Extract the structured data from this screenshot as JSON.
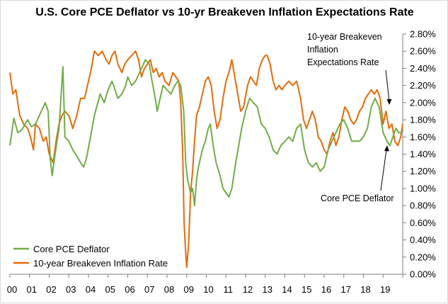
{
  "chart_data": {
    "type": "line",
    "title": "U.S. Core PCE Deflator vs 10-yr Breakeven Inflation Expectations Rate",
    "xlabel": "",
    "ylabel": "",
    "x_tick_labels": [
      "00",
      "01",
      "02",
      "03",
      "04",
      "05",
      "06",
      "07",
      "08",
      "09",
      "10",
      "11",
      "12",
      "13",
      "14",
      "15",
      "16",
      "17",
      "18",
      "19"
    ],
    "x_range": [
      2000.0,
      2020.0
    ],
    "ylim": [
      0.0,
      2.8
    ],
    "y_tick_values": [
      0.0,
      0.2,
      0.4,
      0.6,
      0.8,
      1.0,
      1.2,
      1.4,
      1.6,
      1.8,
      2.0,
      2.2,
      2.4,
      2.6,
      2.8
    ],
    "y_tick_labels": [
      "0.00%",
      "0.20%",
      "0.40%",
      "0.60%",
      "0.80%",
      "1.00%",
      "1.20%",
      "1.40%",
      "1.60%",
      "1.80%",
      "2.00%",
      "2.20%",
      "2.40%",
      "2.60%",
      "2.80%"
    ],
    "legend": {
      "position": "bottom-left"
    },
    "annotations": [
      {
        "lines": [
          "10-year Breakeven",
          "Inflation",
          "Expectations Rate"
        ],
        "target_series": 1
      },
      {
        "lines": [
          "Core PCE Deflator"
        ],
        "target_series": 0
      }
    ],
    "series": [
      {
        "name": "Core PCE Deflator",
        "color": "#70ad47",
        "points": [
          [
            2000.0,
            1.5
          ],
          [
            2000.2,
            1.82
          ],
          [
            2000.4,
            1.65
          ],
          [
            2000.6,
            1.68
          ],
          [
            2000.9,
            1.8
          ],
          [
            2001.1,
            1.72
          ],
          [
            2001.3,
            1.75
          ],
          [
            2001.6,
            1.9
          ],
          [
            2001.8,
            2.0
          ],
          [
            2001.95,
            1.9
          ],
          [
            2002.05,
            1.35
          ],
          [
            2002.15,
            1.15
          ],
          [
            2002.3,
            1.4
          ],
          [
            2002.5,
            1.7
          ],
          [
            2002.7,
            2.42
          ],
          [
            2002.8,
            1.6
          ],
          [
            2003.0,
            1.55
          ],
          [
            2003.2,
            1.45
          ],
          [
            2003.4,
            1.38
          ],
          [
            2003.6,
            1.3
          ],
          [
            2003.75,
            1.25
          ],
          [
            2003.9,
            1.35
          ],
          [
            2004.1,
            1.6
          ],
          [
            2004.3,
            1.85
          ],
          [
            2004.6,
            2.1
          ],
          [
            2004.8,
            2.0
          ],
          [
            2005.0,
            2.15
          ],
          [
            2005.2,
            2.25
          ],
          [
            2005.35,
            2.15
          ],
          [
            2005.5,
            2.05
          ],
          [
            2005.7,
            2.1
          ],
          [
            2005.9,
            2.2
          ],
          [
            2006.0,
            2.3
          ],
          [
            2006.2,
            2.2
          ],
          [
            2006.4,
            2.25
          ],
          [
            2006.6,
            2.35
          ],
          [
            2006.8,
            2.45
          ],
          [
            2006.9,
            2.5
          ],
          [
            2007.1,
            2.45
          ],
          [
            2007.2,
            2.3
          ],
          [
            2007.4,
            2.05
          ],
          [
            2007.5,
            1.9
          ],
          [
            2007.6,
            2.0
          ],
          [
            2007.8,
            2.2
          ],
          [
            2008.0,
            2.15
          ],
          [
            2008.2,
            2.1
          ],
          [
            2008.4,
            2.2
          ],
          [
            2008.55,
            2.25
          ],
          [
            2008.7,
            2.2
          ],
          [
            2008.85,
            1.9
          ],
          [
            2008.95,
            1.3
          ],
          [
            2009.05,
            1.1
          ],
          [
            2009.2,
            0.95
          ],
          [
            2009.3,
            1.0
          ],
          [
            2009.4,
            0.8
          ],
          [
            2009.5,
            1.1
          ],
          [
            2009.6,
            1.25
          ],
          [
            2009.8,
            1.45
          ],
          [
            2009.95,
            1.55
          ],
          [
            2010.1,
            1.7
          ],
          [
            2010.2,
            1.75
          ],
          [
            2010.35,
            1.5
          ],
          [
            2010.5,
            1.3
          ],
          [
            2010.7,
            1.15
          ],
          [
            2010.85,
            1.0
          ],
          [
            2011.0,
            0.95
          ],
          [
            2011.15,
            0.9
          ],
          [
            2011.3,
            1.0
          ],
          [
            2011.5,
            1.3
          ],
          [
            2011.8,
            1.7
          ],
          [
            2012.0,
            1.9
          ],
          [
            2012.2,
            2.05
          ],
          [
            2012.4,
            2.0
          ],
          [
            2012.6,
            1.95
          ],
          [
            2012.8,
            1.75
          ],
          [
            2013.0,
            1.7
          ],
          [
            2013.2,
            1.6
          ],
          [
            2013.4,
            1.45
          ],
          [
            2013.6,
            1.4
          ],
          [
            2013.8,
            1.5
          ],
          [
            2014.0,
            1.55
          ],
          [
            2014.2,
            1.6
          ],
          [
            2014.4,
            1.55
          ],
          [
            2014.6,
            1.7
          ],
          [
            2014.8,
            1.75
          ],
          [
            2015.0,
            1.45
          ],
          [
            2015.2,
            1.3
          ],
          [
            2015.4,
            1.25
          ],
          [
            2015.6,
            1.3
          ],
          [
            2015.8,
            1.2
          ],
          [
            2016.0,
            1.25
          ],
          [
            2016.2,
            1.45
          ],
          [
            2016.4,
            1.55
          ],
          [
            2016.6,
            1.65
          ],
          [
            2016.8,
            1.75
          ],
          [
            2017.0,
            1.8
          ],
          [
            2017.2,
            1.7
          ],
          [
            2017.4,
            1.55
          ],
          [
            2017.6,
            1.55
          ],
          [
            2017.8,
            1.55
          ],
          [
            2018.0,
            1.6
          ],
          [
            2018.2,
            1.7
          ],
          [
            2018.4,
            1.95
          ],
          [
            2018.6,
            2.05
          ],
          [
            2018.8,
            1.95
          ],
          [
            2019.0,
            1.65
          ],
          [
            2019.2,
            1.55
          ],
          [
            2019.35,
            1.5
          ],
          [
            2019.5,
            1.6
          ],
          [
            2019.65,
            1.7
          ],
          [
            2019.8,
            1.65
          ],
          [
            2019.95,
            1.65
          ]
        ]
      },
      {
        "name": "10-year Breakeven Inflation Rate",
        "color": "#e36c09",
        "points": [
          [
            2000.0,
            2.35
          ],
          [
            2000.15,
            2.1
          ],
          [
            2000.3,
            2.15
          ],
          [
            2000.5,
            1.85
          ],
          [
            2000.7,
            1.75
          ],
          [
            2000.9,
            1.7
          ],
          [
            2001.05,
            1.6
          ],
          [
            2001.2,
            1.45
          ],
          [
            2001.3,
            1.75
          ],
          [
            2001.5,
            1.7
          ],
          [
            2001.7,
            1.55
          ],
          [
            2001.85,
            1.6
          ],
          [
            2002.0,
            1.4
          ],
          [
            2002.2,
            1.3
          ],
          [
            2002.35,
            1.55
          ],
          [
            2002.5,
            1.75
          ],
          [
            2002.65,
            1.85
          ],
          [
            2002.8,
            1.9
          ],
          [
            2003.0,
            1.85
          ],
          [
            2003.2,
            1.7
          ],
          [
            2003.4,
            1.85
          ],
          [
            2003.6,
            2.05
          ],
          [
            2003.8,
            2.05
          ],
          [
            2004.0,
            2.25
          ],
          [
            2004.15,
            2.4
          ],
          [
            2004.3,
            2.6
          ],
          [
            2004.5,
            2.55
          ],
          [
            2004.7,
            2.6
          ],
          [
            2004.9,
            2.5
          ],
          [
            2005.05,
            2.45
          ],
          [
            2005.2,
            2.55
          ],
          [
            2005.35,
            2.6
          ],
          [
            2005.5,
            2.45
          ],
          [
            2005.7,
            2.35
          ],
          [
            2005.85,
            2.45
          ],
          [
            2006.0,
            2.5
          ],
          [
            2006.2,
            2.55
          ],
          [
            2006.4,
            2.6
          ],
          [
            2006.55,
            2.5
          ],
          [
            2006.7,
            2.3
          ],
          [
            2006.85,
            2.4
          ],
          [
            2007.0,
            2.45
          ],
          [
            2007.15,
            2.5
          ],
          [
            2007.3,
            2.35
          ],
          [
            2007.45,
            2.4
          ],
          [
            2007.6,
            2.3
          ],
          [
            2007.75,
            2.35
          ],
          [
            2007.9,
            2.25
          ],
          [
            2008.1,
            2.2
          ],
          [
            2008.3,
            2.35
          ],
          [
            2008.45,
            2.3
          ],
          [
            2008.6,
            2.25
          ],
          [
            2008.7,
            2.0
          ],
          [
            2008.8,
            1.4
          ],
          [
            2008.87,
            0.6
          ],
          [
            2008.95,
            0.25
          ],
          [
            2009.0,
            0.08
          ],
          [
            2009.1,
            0.35
          ],
          [
            2009.2,
            0.95
          ],
          [
            2009.3,
            1.2
          ],
          [
            2009.4,
            1.55
          ],
          [
            2009.5,
            1.85
          ],
          [
            2009.65,
            1.95
          ],
          [
            2009.8,
            2.1
          ],
          [
            2009.95,
            2.25
          ],
          [
            2010.1,
            2.3
          ],
          [
            2010.25,
            2.2
          ],
          [
            2010.4,
            1.9
          ],
          [
            2010.55,
            1.7
          ],
          [
            2010.7,
            1.8
          ],
          [
            2010.85,
            2.05
          ],
          [
            2011.0,
            2.25
          ],
          [
            2011.15,
            2.35
          ],
          [
            2011.3,
            2.5
          ],
          [
            2011.45,
            2.3
          ],
          [
            2011.6,
            2.1
          ],
          [
            2011.75,
            1.9
          ],
          [
            2011.9,
            1.95
          ],
          [
            2012.1,
            2.2
          ],
          [
            2012.25,
            2.3
          ],
          [
            2012.4,
            2.25
          ],
          [
            2012.55,
            2.2
          ],
          [
            2012.7,
            2.4
          ],
          [
            2012.85,
            2.5
          ],
          [
            2013.0,
            2.55
          ],
          [
            2013.1,
            2.55
          ],
          [
            2013.25,
            2.45
          ],
          [
            2013.4,
            2.25
          ],
          [
            2013.55,
            2.15
          ],
          [
            2013.7,
            2.2
          ],
          [
            2013.85,
            2.15
          ],
          [
            2014.0,
            2.2
          ],
          [
            2014.2,
            2.25
          ],
          [
            2014.4,
            2.2
          ],
          [
            2014.6,
            2.25
          ],
          [
            2014.8,
            2.05
          ],
          [
            2014.95,
            1.8
          ],
          [
            2015.1,
            1.7
          ],
          [
            2015.25,
            1.8
          ],
          [
            2015.4,
            1.9
          ],
          [
            2015.55,
            1.8
          ],
          [
            2015.7,
            1.6
          ],
          [
            2015.85,
            1.55
          ],
          [
            2016.0,
            1.45
          ],
          [
            2016.15,
            1.4
          ],
          [
            2016.3,
            1.55
          ],
          [
            2016.45,
            1.65
          ],
          [
            2016.6,
            1.5
          ],
          [
            2016.75,
            1.6
          ],
          [
            2016.9,
            1.8
          ],
          [
            2017.05,
            1.95
          ],
          [
            2017.2,
            1.9
          ],
          [
            2017.35,
            1.8
          ],
          [
            2017.5,
            1.75
          ],
          [
            2017.65,
            1.8
          ],
          [
            2017.8,
            1.9
          ],
          [
            2017.95,
            1.95
          ],
          [
            2018.1,
            2.05
          ],
          [
            2018.25,
            2.1
          ],
          [
            2018.4,
            2.15
          ],
          [
            2018.55,
            2.1
          ],
          [
            2018.7,
            2.15
          ],
          [
            2018.85,
            2.05
          ],
          [
            2019.0,
            1.75
          ],
          [
            2019.15,
            1.9
          ],
          [
            2019.3,
            1.7
          ],
          [
            2019.45,
            1.75
          ],
          [
            2019.6,
            1.55
          ],
          [
            2019.75,
            1.5
          ],
          [
            2019.9,
            1.6
          ],
          [
            2020.0,
            1.75
          ]
        ]
      }
    ]
  }
}
